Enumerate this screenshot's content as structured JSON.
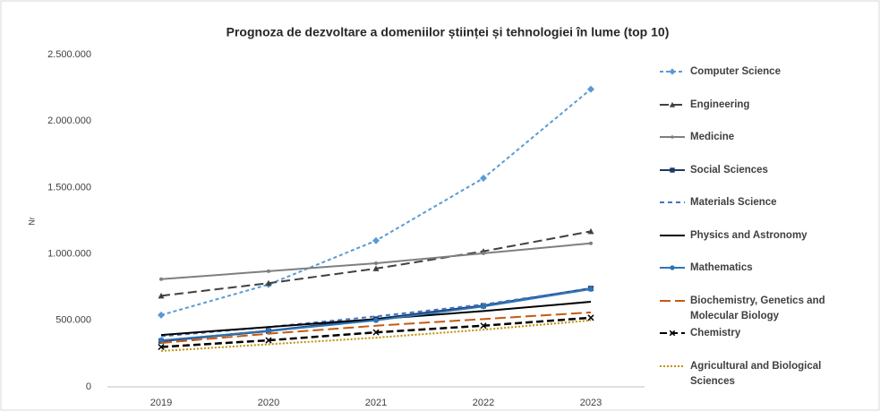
{
  "chart_data": {
    "type": "line",
    "title": "Prognoza de dezvoltare a domeniilor științei și tehnologiei în lume (top 10)",
    "y_label": "Nr",
    "categories": [
      "2019",
      "2020",
      "2021",
      "2022",
      "2023"
    ],
    "ylim": [
      0,
      2500000
    ],
    "yticks": [
      0,
      {
        "value": 500000,
        "label": "500.000"
      },
      {
        "value": 1000000,
        "label": "1.000.000"
      },
      {
        "value": 1500000,
        "label": "1.500.000"
      },
      {
        "value": 2000000,
        "label": "2.000.000"
      },
      {
        "value": 2500000,
        "label": "2.500.000"
      }
    ],
    "grid": false,
    "legend": "right",
    "series": [
      {
        "name": "Computer Science",
        "color": "#5b9bd5",
        "dash": "4,3",
        "marker": "diamond",
        "values": [
          540000,
          770000,
          1100000,
          1570000,
          2240000
        ]
      },
      {
        "name": "Engineering",
        "color": "#404040",
        "dash": "10,5",
        "marker": "triangle",
        "values": [
          685000,
          780000,
          890000,
          1020000,
          1170000
        ]
      },
      {
        "name": "Medicine",
        "color": "#7f7f7f",
        "dash": "none",
        "marker": "dot",
        "values": [
          810000,
          870000,
          930000,
          1005000,
          1080000
        ]
      },
      {
        "name": "Social Sciences",
        "color": "#1f3864",
        "dash": "none",
        "marker": "square",
        "values": [
          345000,
          420000,
          510000,
          610000,
          740000
        ]
      },
      {
        "name": "Materials Science",
        "color": "#4472c4",
        "dash": "5,4",
        "marker": "none",
        "values": [
          380000,
          450000,
          530000,
          620000,
          740000
        ]
      },
      {
        "name": "Physics and Astronomy",
        "color": "#000000",
        "dash": "none",
        "marker": "none",
        "values": [
          390000,
          450000,
          510000,
          570000,
          640000
        ]
      },
      {
        "name": "Mathematics",
        "color": "#2e75b6",
        "dash": "none",
        "marker": "circle",
        "values": [
          350000,
          420000,
          500000,
          605000,
          735000
        ]
      },
      {
        "name": "Biochemistry, Genetics and Molecular Biology",
        "color": "#c55a11",
        "dash": "12,5",
        "marker": "none",
        "values": [
          330000,
          400000,
          460000,
          510000,
          560000
        ]
      },
      {
        "name": "Chemistry",
        "color": "#000000",
        "dash": "8,4",
        "marker": "x",
        "values": [
          300000,
          350000,
          410000,
          460000,
          520000
        ]
      },
      {
        "name": "Agricultural and Biological Sciences",
        "color": "#bf9000",
        "dash": "2,2",
        "marker": "none",
        "values": [
          270000,
          320000,
          370000,
          430000,
          500000
        ]
      }
    ]
  }
}
